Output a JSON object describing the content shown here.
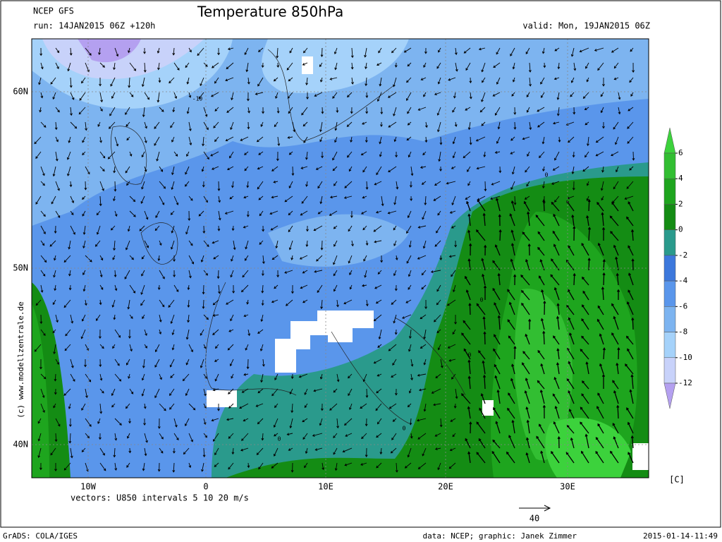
{
  "header": {
    "model": "NCEP GFS",
    "run": "run: 14JAN2015 06Z +120h",
    "title": "Temperature 850hPa",
    "valid": "valid: Mon, 19JAN2015 06Z"
  },
  "map": {
    "lat_labels": [
      "60N",
      "50N",
      "40N"
    ],
    "lon_labels": [
      "10W",
      "0",
      "10E",
      "20E",
      "30E"
    ],
    "vectors_note": "vectors: U850 intervals 5 10 20 m/s",
    "reference_vector": "40",
    "side_credit": "(c) www.modellzentrale.de",
    "contour_labels": [
      "-10",
      "0",
      "0",
      "0",
      "0",
      "0"
    ]
  },
  "colorbar": {
    "ticks": [
      6,
      4,
      2,
      0,
      -2,
      -4,
      -6,
      -8,
      -10,
      -12
    ],
    "colors": [
      "#3cd23c",
      "#32be32",
      "#1ea51e",
      "#148c14",
      "#2a9a8c",
      "#3c78dc",
      "#5a96eb",
      "#7db4f0",
      "#a5d2fa",
      "#c8d2fa",
      "#b4a0f0"
    ],
    "unit": "[C]"
  },
  "footer": {
    "software": "GrADS: COLA/IGES",
    "credit": "data: NCEP; graphic: Janek Zimmer",
    "timestamp": "2015-01-14-11:49"
  }
}
